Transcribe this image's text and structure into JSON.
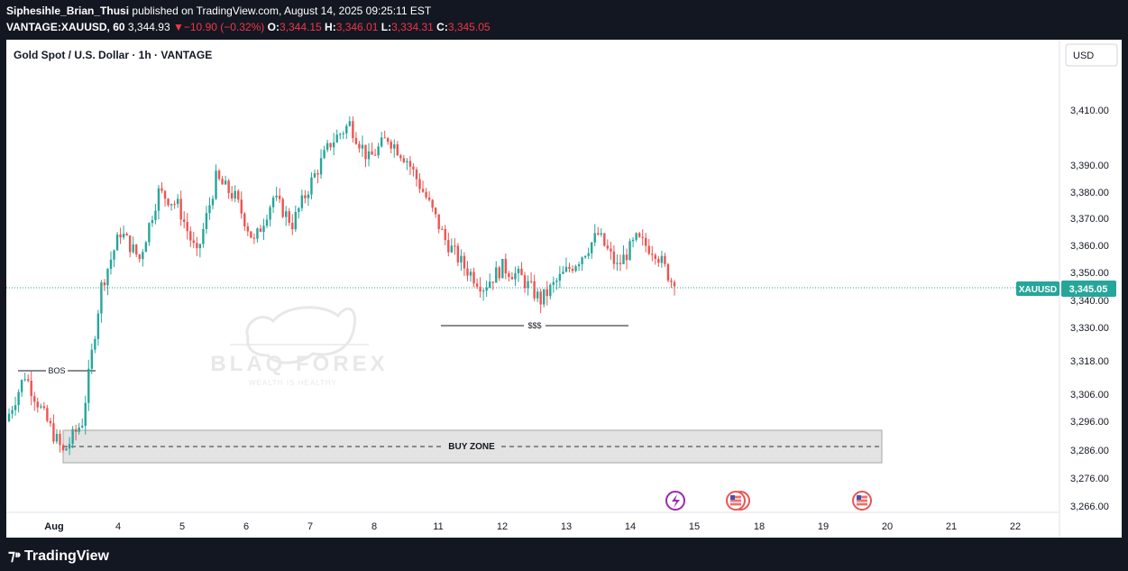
{
  "header": {
    "author": "Siphesihle_Brian_Thusi",
    "published_text": "published on TradingView.com, August 14, 2025 09:25:11 EST",
    "symbol": "VANTAGE:XAUUSD, 60",
    "price": "3,344.93",
    "change": "−10.90 (−0.32%)",
    "o_label": "O:",
    "o_value": "3,344.15",
    "h_label": "H:",
    "h_value": "3,346.01",
    "l_label": "L:",
    "l_value": "3,334.31",
    "c_label": "C:",
    "c_value": "3,345.05"
  },
  "chart": {
    "title": "Gold Spot / U.S. Dollar · 1h · VANTAGE",
    "currency_button": "USD",
    "symbol_tag": "XAUUSD",
    "last_price_label": "3,345.05",
    "annotations": {
      "bos": "BOS",
      "liquidity": "$$$",
      "buy_zone": "BUY ZONE"
    },
    "watermark": {
      "brand": "BLAQ FOREX",
      "tagline": "WEALTH IS HEALTHY"
    }
  },
  "footer": {
    "brand": "TradingView"
  },
  "colors": {
    "up": "#26a69a",
    "down": "#ef5350",
    "background": "#ffffff",
    "frame": "#131722"
  },
  "chart_data": {
    "type": "candlestick",
    "title": "Gold Spot / U.S. Dollar · 1h · VANTAGE",
    "y_ticks": [
      "3,410.00",
      "3,390.00",
      "3,380.00",
      "3,370.00",
      "3,360.00",
      "3,350.00",
      "3,340.00",
      "3,330.00",
      "3,318.00",
      "3,306.00",
      "3,296.00",
      "3,286.00",
      "3,276.00",
      "3,266.00"
    ],
    "x_ticks": [
      "Aug",
      "4",
      "5",
      "6",
      "7",
      "8",
      "11",
      "12",
      "13",
      "14",
      "15",
      "18",
      "19",
      "20",
      "21",
      "22"
    ],
    "last_price": 3345.05,
    "buy_zone": [
      3282,
      3293
    ],
    "bos_level": 3315,
    "liquidity_level": 3332,
    "anchors": [
      {
        "t": "Jul 31",
        "p": 3296
      },
      {
        "t": "Jul 31",
        "p": 3313
      },
      {
        "t": "Jul 31",
        "p": 3298
      },
      {
        "t": "Aug 1",
        "p": 3285
      },
      {
        "t": "Aug 1",
        "p": 3296
      },
      {
        "t": "Aug 1",
        "p": 3345
      },
      {
        "t": "Aug 4",
        "p": 3365
      },
      {
        "t": "Aug 4",
        "p": 3355
      },
      {
        "t": "Aug 4",
        "p": 3380
      },
      {
        "t": "Aug 5",
        "p": 3375
      },
      {
        "t": "Aug 5",
        "p": 3356
      },
      {
        "t": "Aug 6",
        "p": 3385
      },
      {
        "t": "Aug 6",
        "p": 3378
      },
      {
        "t": "Aug 6",
        "p": 3361
      },
      {
        "t": "Aug 7",
        "p": 3378
      },
      {
        "t": "Aug 7",
        "p": 3368
      },
      {
        "t": "Aug 7",
        "p": 3384
      },
      {
        "t": "Aug 8",
        "p": 3398
      },
      {
        "t": "Aug 8",
        "p": 3405
      },
      {
        "t": "Aug 8",
        "p": 3392
      },
      {
        "t": "Aug 8",
        "p": 3400
      },
      {
        "t": "Aug 11",
        "p": 3392
      },
      {
        "t": "Aug 11",
        "p": 3378
      },
      {
        "t": "Aug 11",
        "p": 3362
      },
      {
        "t": "Aug 11",
        "p": 3352
      },
      {
        "t": "Aug 12",
        "p": 3345
      },
      {
        "t": "Aug 12",
        "p": 3352
      },
      {
        "t": "Aug 12",
        "p": 3348
      },
      {
        "t": "Aug 12",
        "p": 3340
      },
      {
        "t": "Aug 13",
        "p": 3348
      },
      {
        "t": "Aug 13",
        "p": 3355
      },
      {
        "t": "Aug 13",
        "p": 3364
      },
      {
        "t": "Aug 13",
        "p": 3352
      },
      {
        "t": "Aug 14",
        "p": 3362
      },
      {
        "t": "Aug 14",
        "p": 3358
      },
      {
        "t": "Aug 14",
        "p": 3345
      }
    ]
  }
}
